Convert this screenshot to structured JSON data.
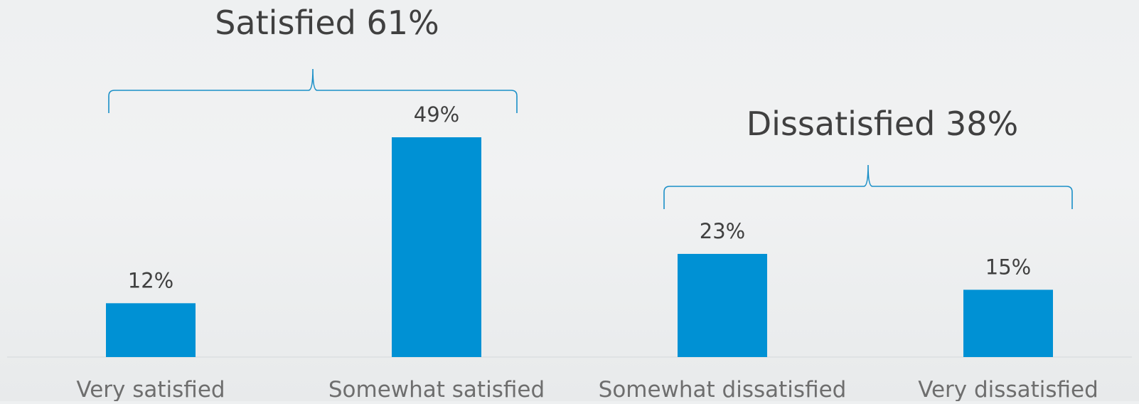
{
  "chart_data": {
    "type": "bar",
    "categories": [
      "Very satisfied",
      "Somewhat satisfied",
      "Somewhat dissatisfied",
      "Very dissatisfied"
    ],
    "values": [
      12,
      49,
      23,
      15
    ],
    "data_labels": [
      "12%",
      "49%",
      "23%",
      "15%"
    ],
    "ylim": [
      0,
      49
    ],
    "grid": false,
    "legend": "none",
    "bar_color": "#0091d4",
    "bracket_color": "#1a8fc7",
    "text_color": "#404040",
    "axis_label_color": "#6e6e6e",
    "groups": [
      {
        "label": "Satisfied 61%",
        "categories": [
          0,
          1
        ]
      },
      {
        "label": "Dissatisfied 38%",
        "categories": [
          2,
          3
        ]
      }
    ]
  }
}
